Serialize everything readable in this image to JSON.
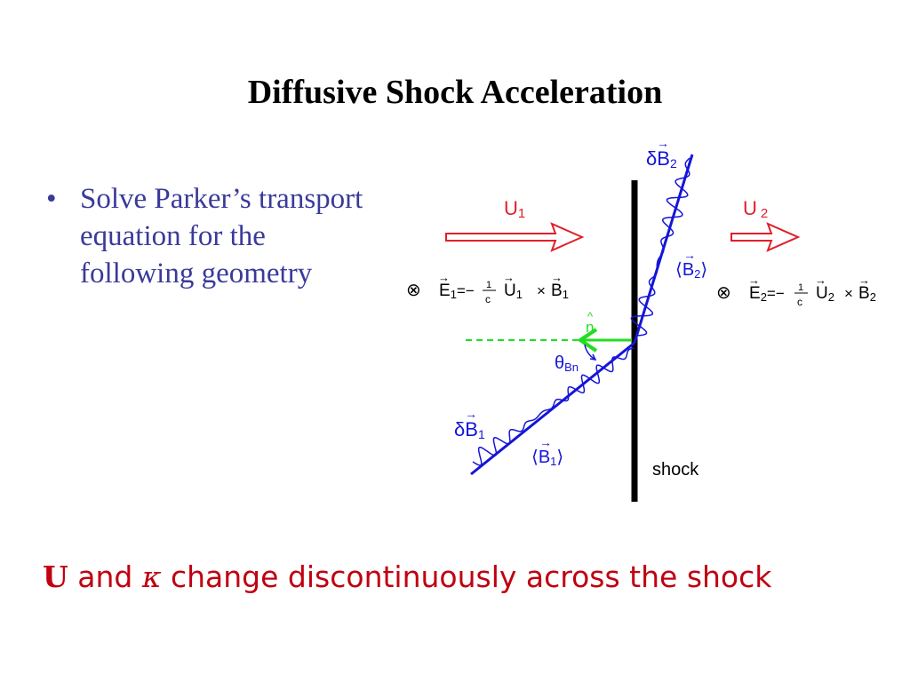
{
  "title": "Diffusive Shock Acceleration",
  "bullets": [
    "Solve Parker’s transport equation for the following geometry"
  ],
  "diagram": {
    "upstream_velocity": {
      "main": "U",
      "sub": "1"
    },
    "downstream_velocity": {
      "main": "U",
      "sub": "2"
    },
    "efield_upstream": {
      "label": "E",
      "sub": "1",
      "eq": "=−",
      "num": "1",
      "den": "c",
      "u": "U",
      "usub": "1",
      "times": "×",
      "b": "B",
      "bsub": "1"
    },
    "efield_downstream": {
      "label": "E",
      "sub": "2",
      "eq": "=−",
      "num": "1",
      "den": "c",
      "u": "U",
      "usub": "2",
      "times": "×",
      "b": "B",
      "bsub": "2"
    },
    "into_page_symbol": "⊗",
    "normal": {
      "label": "n",
      "hat": "^"
    },
    "angle": {
      "main": "θ",
      "sub": "Bn"
    },
    "dB1": {
      "delta": "δ",
      "main": "B",
      "sub": "1"
    },
    "B1_mean": {
      "main": "B",
      "sub": "1"
    },
    "dB2": {
      "delta": "δ",
      "main": "B",
      "sub": "2"
    },
    "B2_mean": {
      "main": "B",
      "sub": "2"
    },
    "shock_label": "shock",
    "colors": {
      "flow": "#e0202a",
      "field": "#1515d8",
      "normal": "#22dd22",
      "shock": "#000000"
    }
  },
  "footer": {
    "symbol_u": "U",
    "and": " and ",
    "symbol_kappa": "κ",
    "rest": " change discontinuously across the shock"
  }
}
